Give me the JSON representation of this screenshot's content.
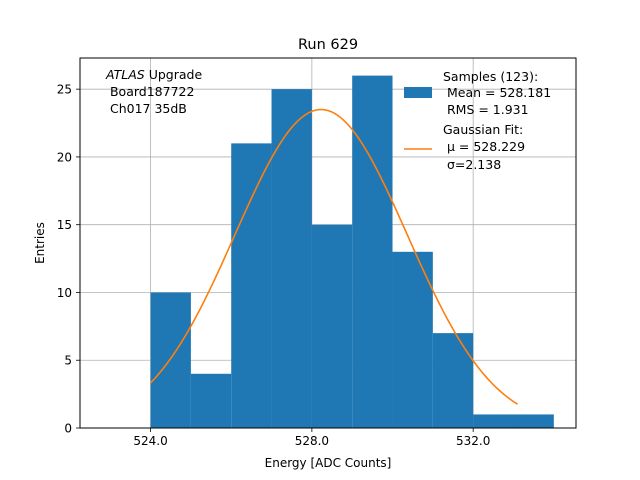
{
  "chart_data": {
    "type": "bar",
    "title": "Run 629",
    "xlabel": "Energy [ADC Counts]",
    "ylabel": "Entries",
    "xlim": [
      522.25,
      534.55
    ],
    "ylim": [
      0,
      27.3
    ],
    "grid": true,
    "x_ticks": [
      524.0,
      528.0,
      532.0
    ],
    "x_tick_labels": [
      "524.0",
      "528.0",
      "532.0"
    ],
    "y_ticks": [
      0,
      5,
      10,
      15,
      20,
      25
    ],
    "y_tick_labels": [
      "0",
      "5",
      "10",
      "15",
      "20",
      "25"
    ],
    "bins": [
      {
        "x0": 524.0,
        "x1": 525.0,
        "count": 10
      },
      {
        "x0": 525.0,
        "x1": 526.0,
        "count": 4
      },
      {
        "x0": 526.0,
        "x1": 527.0,
        "count": 21
      },
      {
        "x0": 527.0,
        "x1": 528.0,
        "count": 25
      },
      {
        "x0": 528.0,
        "x1": 529.0,
        "count": 15
      },
      {
        "x0": 529.0,
        "x1": 530.0,
        "count": 26
      },
      {
        "x0": 530.0,
        "x1": 531.0,
        "count": 13
      },
      {
        "x0": 531.0,
        "x1": 532.0,
        "count": 7
      },
      {
        "x0": 532.0,
        "x1": 533.0,
        "count": 1
      },
      {
        "x0": 533.0,
        "x1": 534.0,
        "count": 1
      }
    ],
    "series": [
      {
        "name": "Samples (123):\n Mean = 528.181\n RMS = 1.931",
        "type": "histogram",
        "color": "#1f77b4"
      },
      {
        "name": "Gaussian Fit:\n μ = 528.229\n σ=2.138",
        "type": "line",
        "color": "#ff7f0e",
        "amplitude": 23.5,
        "mu": 528.229,
        "sigma": 2.138,
        "x_range": [
          524.0,
          533.1
        ]
      }
    ],
    "legend": {
      "placement": "top-right",
      "entries": [
        {
          "lines": [
            "Samples (123):",
            " Mean = 528.181",
            " RMS = 1.931"
          ],
          "marker": "patch",
          "color": "#1f77b4"
        },
        {
          "lines": [
            "Gaussian Fit:",
            " μ = 528.229",
            " σ=2.138"
          ],
          "marker": "line",
          "color": "#ff7f0e"
        }
      ]
    },
    "annotation": {
      "italic": "ATLAS",
      "rest": " Upgrade",
      "lines": [
        " Board187722",
        " Ch017 35dB"
      ]
    }
  }
}
